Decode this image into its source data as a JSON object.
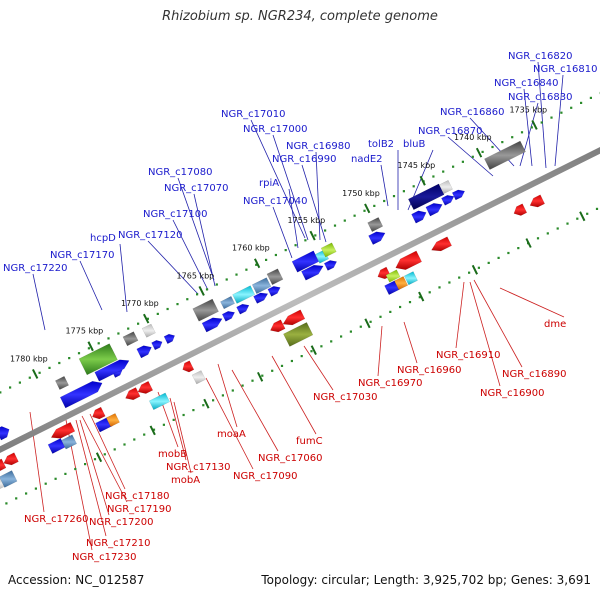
{
  "title": "Rhizobium sp. NGR234, complete genome",
  "footer": {
    "accession": "Accession: NC_012587",
    "topology": "Topology: circular; Length: 3,925,702 bp; Genes: 3,691"
  },
  "colors": {
    "forward_label": "#1a1acc",
    "reverse_label": "#cc0000",
    "track_dots": "#2a8a2a"
  },
  "kbp_ticks": [
    "1735 kbp",
    "1740 kbp",
    "1745 kbp",
    "1750 kbp",
    "1755 kbp",
    "1760 kbp",
    "1765 kbp",
    "1770 kbp",
    "1775 kbp",
    "1780 kbp"
  ],
  "forward_labels": [
    "NGR_c16820",
    "NGR_c16810",
    "NGR_c16840",
    "NGR_c16830",
    "NGR_c16860",
    "NGR_c16870",
    "tolB2",
    "bluB",
    "nadE2",
    "NGR_c17010",
    "NGR_c17000",
    "NGR_c16980",
    "NGR_c16990",
    "rpiA",
    "NGR_c17080",
    "NGR_c17070",
    "NGR_c17040",
    "NGR_c17100",
    "NGR_c17120",
    "hcpD",
    "NGR_c17170",
    "NGR_c17220"
  ],
  "reverse_labels": [
    "dme",
    "NGR_c16910",
    "NGR_c16890",
    "NGR_c16900",
    "NGR_c16960",
    "NGR_c16970",
    "NGR_c17030",
    "fumC",
    "moaA",
    "NGR_c17060",
    "NGR_c17090",
    "mobB",
    "NGR_c17130",
    "mobA",
    "NGR_c17180",
    "NGR_c17190",
    "NGR_c17260",
    "NGR_c17200",
    "NGR_c17210",
    "NGR_c17230"
  ]
}
